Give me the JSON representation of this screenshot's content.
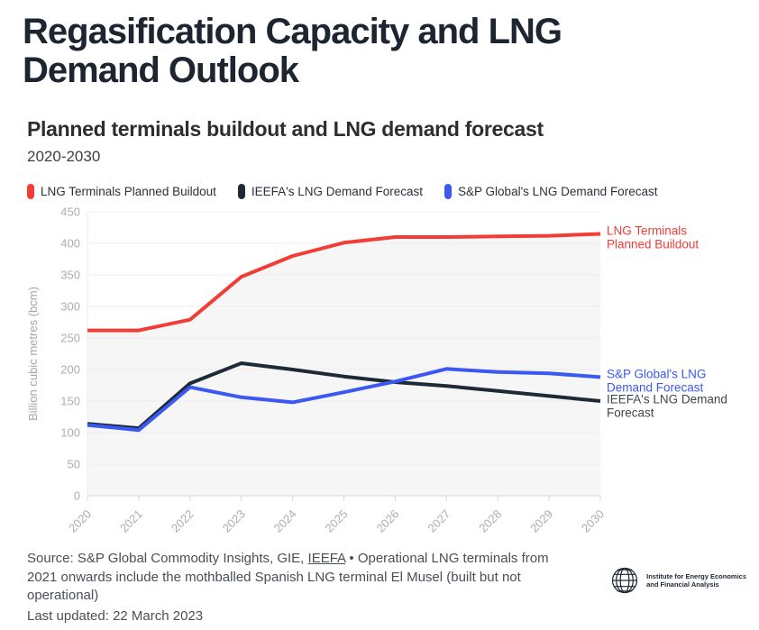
{
  "page": {
    "title": "Regasification Capacity and LNG Demand Outlook"
  },
  "chart": {
    "heading": "Planned terminals buildout and LNG demand forecast",
    "subheading": "2020-2030",
    "legend": [
      {
        "label": "LNG Terminals Planned Buildout",
        "color": "#f23d37"
      },
      {
        "label": "IEEFA's LNG Demand Forecast",
        "color": "#1f2a37"
      },
      {
        "label": "S&P Global's LNG Demand Forecast",
        "color": "#3c58f2"
      }
    ]
  },
  "chart_data": {
    "type": "line",
    "title": "Planned terminals buildout and LNG demand forecast",
    "subtitle": "2020-2030",
    "xlabel": "",
    "ylabel": "Billion cubic metres (bcm)",
    "ylim": [
      0,
      450
    ],
    "yticks": [
      0,
      50,
      100,
      150,
      200,
      250,
      300,
      350,
      400,
      450
    ],
    "grid": true,
    "legend_position": "top",
    "categories": [
      "2020",
      "2021",
      "2022",
      "2023",
      "2024",
      "2025",
      "2026",
      "2027",
      "2028",
      "2029",
      "2030"
    ],
    "series": [
      {
        "name": "LNG Terminals Planned Buildout",
        "color": "#f23d37",
        "area": true,
        "area_color": "#f6f6f7",
        "values": [
          262,
          262,
          279,
          347,
          380,
          401,
          410,
          410,
          411,
          412,
          415
        ],
        "annotation_lines": [
          "LNG Terminals",
          "Planned Buildout"
        ],
        "annotation_color": "#f23d37"
      },
      {
        "name": "IEEFA's LNG Demand Forecast",
        "color": "#1f2a37",
        "area": false,
        "values": [
          114,
          107,
          178,
          210,
          200,
          189,
          180,
          174,
          166,
          158,
          150
        ],
        "annotation_lines": [
          "IEEFA's LNG Demand",
          "Forecast"
        ],
        "annotation_color": "#3f454d"
      },
      {
        "name": "S&P Global's LNG Demand Forecast",
        "color": "#3c58f2",
        "area": false,
        "values": [
          112,
          104,
          172,
          156,
          148,
          164,
          181,
          201,
          196,
          194,
          188
        ],
        "annotation_lines": [
          "S&P Global's LNG",
          "Demand Forecast"
        ],
        "annotation_color": "#3c58f2"
      }
    ]
  },
  "footer": {
    "source_prefix": "Source: S&P Global Commodity Insights, GIE, ",
    "source_link": "IEEFA",
    "source_suffix": " • Operational LNG terminals from 2021 onwards include the mothballed Spanish LNG terminal El Musel (built but not operational)",
    "last_updated": "Last updated: 22 March 2023",
    "logo_text_line1": "Institute for Energy Economics",
    "logo_text_line2": "and Financial Analysis"
  },
  "colors": {
    "accent_red": "#f23d37",
    "accent_dark": "#1f2a37",
    "accent_blue": "#3c58f2",
    "grid_line": "#ececee",
    "axis_line": "#d7d7d9",
    "tick_text": "#a9adb2",
    "area_fill": "#f6f6f7"
  }
}
